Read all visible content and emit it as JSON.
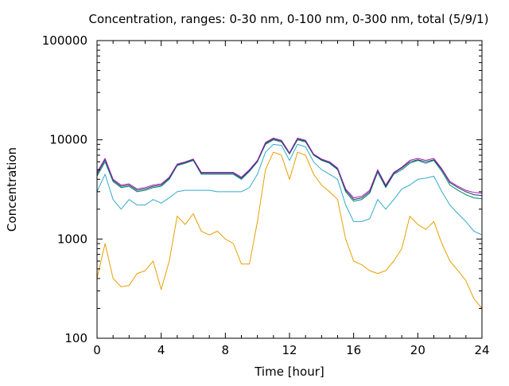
{
  "chart_data": {
    "type": "line",
    "title": "Concentration, ranges: 0-30 nm, 0-100 nm, 0-300 nm, total (5/9/1)",
    "xlabel": "Time [hour]",
    "ylabel": "Concentration",
    "xlim": [
      0,
      24
    ],
    "ylim": [
      100,
      100000
    ],
    "yscale": "log",
    "grid": false,
    "x_ticks": [
      0,
      4,
      8,
      12,
      16,
      20,
      24
    ],
    "x_tick_labels": [
      "0",
      "4",
      "8",
      "12",
      "16",
      "20",
      "24"
    ],
    "y_ticks": [
      100,
      1000,
      10000,
      100000
    ],
    "y_tick_labels": [
      "100",
      "1000",
      "10000",
      "100000"
    ],
    "x": [
      0,
      0.5,
      1,
      1.5,
      2,
      2.5,
      3,
      3.5,
      4,
      4.5,
      5,
      5.5,
      6,
      6.5,
      7,
      7.5,
      8,
      8.5,
      9,
      9.5,
      10,
      10.5,
      11,
      11.5,
      12,
      12.5,
      13,
      13.5,
      14,
      14.5,
      15,
      15.5,
      16,
      16.5,
      17,
      17.5,
      18,
      18.5,
      19,
      19.5,
      20,
      20.5,
      21,
      21.5,
      22,
      22.5,
      23,
      23.5,
      24
    ],
    "series": [
      {
        "color": "#e8a000",
        "values": [
          400,
          900,
          400,
          330,
          340,
          450,
          480,
          600,
          310,
          600,
          1700,
          1400,
          1800,
          1200,
          1100,
          1200,
          1000,
          900,
          560,
          560,
          1500,
          5000,
          7500,
          7000,
          4000,
          7500,
          7000,
          4500,
          3500,
          3000,
          2500,
          1000,
          600,
          550,
          480,
          450,
          480,
          600,
          800,
          1700,
          1400,
          1250,
          1500,
          900,
          600,
          480,
          380,
          250,
          200
        ]
      },
      {
        "color": "#33aacc",
        "values": [
          3000,
          4500,
          2500,
          2000,
          2500,
          2200,
          2200,
          2500,
          2300,
          2600,
          3000,
          3100,
          3100,
          3100,
          3100,
          3000,
          3000,
          3000,
          3000,
          3300,
          4500,
          7500,
          9000,
          8800,
          6200,
          9000,
          8500,
          6000,
          5000,
          4500,
          4000,
          2200,
          1500,
          1500,
          1600,
          2500,
          2000,
          2500,
          3200,
          3500,
          4000,
          4100,
          4300,
          3000,
          2200,
          1800,
          1500,
          1200,
          1100
        ]
      },
      {
        "color": "#008866",
        "values": [
          4300,
          6000,
          3800,
          3300,
          3400,
          3000,
          3100,
          3300,
          3400,
          4000,
          5500,
          5800,
          6200,
          4500,
          4500,
          4500,
          4500,
          4500,
          4000,
          4800,
          6000,
          9000,
          10000,
          9500,
          7200,
          10000,
          9500,
          7000,
          6200,
          5800,
          5000,
          3000,
          2400,
          2500,
          2900,
          4700,
          3300,
          4500,
          5000,
          5800,
          6200,
          5800,
          6200,
          4800,
          3500,
          3100,
          2800,
          2600,
          2550
        ]
      },
      {
        "color": "#1a3a7a",
        "values": [
          4500,
          6300,
          3900,
          3400,
          3500,
          3100,
          3200,
          3400,
          3500,
          4100,
          5600,
          5900,
          6300,
          4600,
          4600,
          4600,
          4600,
          4600,
          4100,
          4900,
          6100,
          9200,
          10200,
          9700,
          7300,
          10200,
          9700,
          7100,
          6300,
          5900,
          5100,
          3100,
          2500,
          2600,
          3000,
          4900,
          3400,
          4600,
          5200,
          6000,
          6300,
          6000,
          6300,
          5000,
          3700,
          3300,
          3000,
          2800,
          2750
        ]
      },
      {
        "color": "#aa22aa",
        "values": [
          4700,
          6500,
          4000,
          3500,
          3600,
          3200,
          3300,
          3500,
          3600,
          4200,
          5700,
          6000,
          6400,
          4700,
          4700,
          4700,
          4700,
          4700,
          4200,
          5000,
          6200,
          9400,
          10400,
          9900,
          7400,
          10400,
          9900,
          7200,
          6400,
          6000,
          5200,
          3200,
          2600,
          2700,
          3100,
          5000,
          3500,
          4700,
          5300,
          6200,
          6500,
          6200,
          6500,
          5100,
          3800,
          3400,
          3100,
          2950,
          2900
        ]
      }
    ]
  }
}
